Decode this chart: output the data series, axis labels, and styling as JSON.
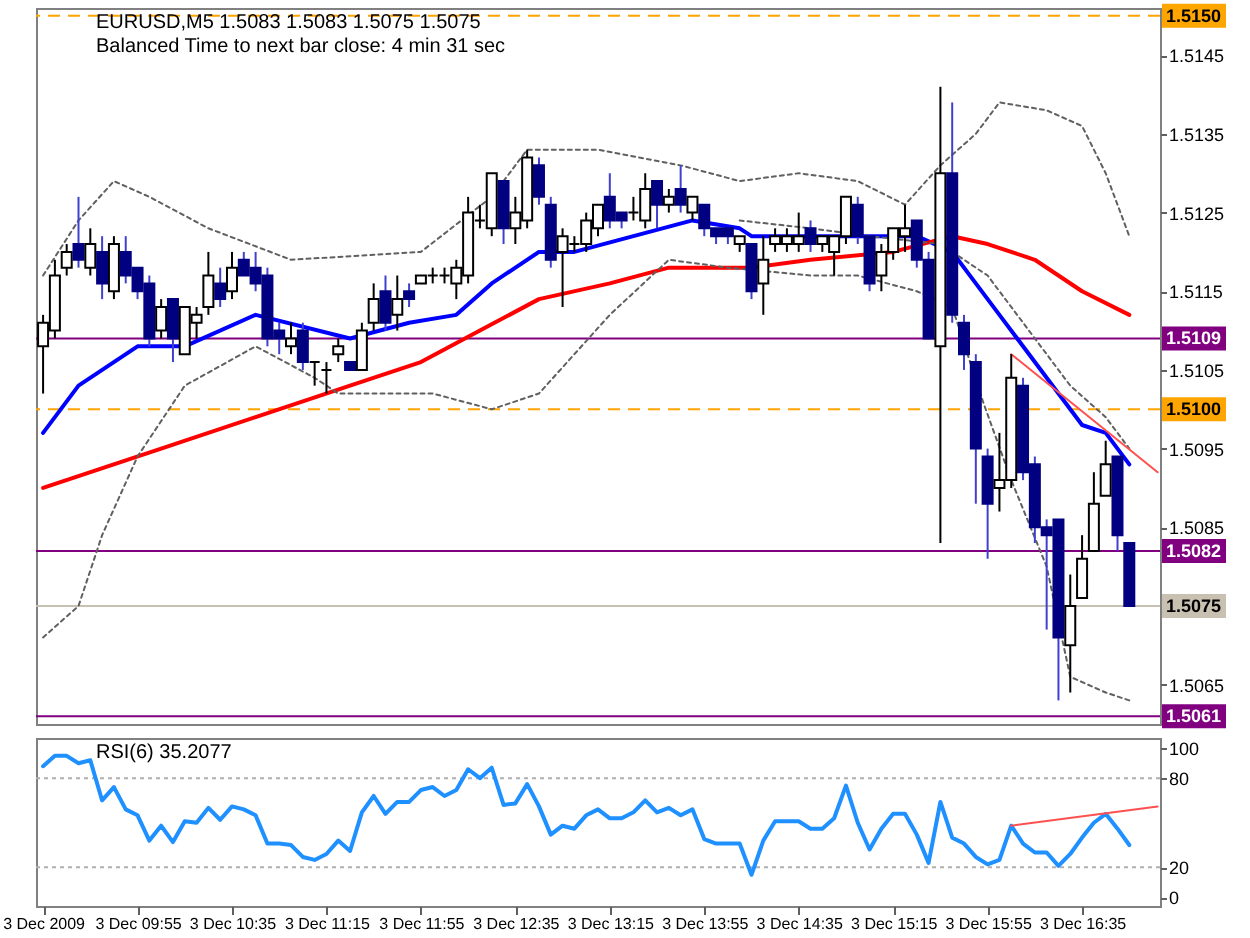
{
  "chart_data": [
    {
      "type": "candlestick",
      "title": "EURUSD,M5  1.5083 1.5083 1.5075 1.5075",
      "subtitle": "Balanced Time to next bar close: 4 min 31 sec",
      "tick_labels": "y",
      "x": [
        "2009-12-03T09:15",
        "2009-12-03T09:20",
        "2009-12-03T09:25",
        "2009-12-03T09:30",
        "2009-12-03T09:35",
        "2009-12-03T09:40",
        "2009-12-03T09:45",
        "2009-12-03T09:50",
        "2009-12-03T09:55",
        "2009-12-03T10:00",
        "2009-12-03T10:05",
        "2009-12-03T10:10",
        "2009-12-03T10:15",
        "2009-12-03T10:20",
        "2009-12-03T10:25",
        "2009-12-03T10:30",
        "2009-12-03T10:35",
        "2009-12-03T10:40",
        "2009-12-03T10:45",
        "2009-12-03T10:50",
        "2009-12-03T10:55",
        "2009-12-03T11:00",
        "2009-12-03T11:05",
        "2009-12-03T11:10",
        "2009-12-03T11:15",
        "2009-12-03T11:20",
        "2009-12-03T11:25",
        "2009-12-03T11:30",
        "2009-12-03T11:35",
        "2009-12-03T11:40",
        "2009-12-03T11:45",
        "2009-12-03T11:50",
        "2009-12-03T11:55",
        "2009-12-03T12:00",
        "2009-12-03T12:05",
        "2009-12-03T12:10",
        "2009-12-03T12:15",
        "2009-12-03T12:20",
        "2009-12-03T12:25",
        "2009-12-03T12:30",
        "2009-12-03T12:35",
        "2009-12-03T12:40",
        "2009-12-03T12:45",
        "2009-12-03T12:50",
        "2009-12-03T12:55",
        "2009-12-03T13:00",
        "2009-12-03T13:05",
        "2009-12-03T13:10",
        "2009-12-03T13:15",
        "2009-12-03T13:20",
        "2009-12-03T13:25",
        "2009-12-03T13:30",
        "2009-12-03T13:35",
        "2009-12-03T13:40",
        "2009-12-03T13:45",
        "2009-12-03T13:50",
        "2009-12-03T13:55",
        "2009-12-03T14:00",
        "2009-12-03T14:05",
        "2009-12-03T14:10",
        "2009-12-03T14:15",
        "2009-12-03T14:20",
        "2009-12-03T14:25",
        "2009-12-03T14:30",
        "2009-12-03T14:35",
        "2009-12-03T14:40",
        "2009-12-03T14:45",
        "2009-12-03T14:50",
        "2009-12-03T14:55",
        "2009-12-03T15:00",
        "2009-12-03T15:05",
        "2009-12-03T15:10",
        "2009-12-03T15:15",
        "2009-12-03T15:20",
        "2009-12-03T15:25",
        "2009-12-03T15:30",
        "2009-12-03T15:35",
        "2009-12-03T15:40",
        "2009-12-03T15:45",
        "2009-12-03T15:50",
        "2009-12-03T15:55",
        "2009-12-03T16:00",
        "2009-12-03T16:05",
        "2009-12-03T16:10",
        "2009-12-03T16:15",
        "2009-12-03T16:20",
        "2009-12-03T16:25",
        "2009-12-03T16:30",
        "2009-12-03T16:35",
        "2009-12-03T16:40",
        "2009-12-03T16:45",
        "2009-12-03T16:50",
        "2009-12-03T16:55"
      ],
      "ohlc": [
        [
          1.5108,
          1.5112,
          1.5102,
          1.5111
        ],
        [
          1.511,
          1.5119,
          1.5109,
          1.5117
        ],
        [
          1.5118,
          1.5121,
          1.5117,
          1.512
        ],
        [
          1.5121,
          1.5127,
          1.5118,
          1.5119
        ],
        [
          1.5118,
          1.5123,
          1.5117,
          1.5121
        ],
        [
          1.512,
          1.5122,
          1.5114,
          1.5116
        ],
        [
          1.5115,
          1.5122,
          1.5114,
          1.5121
        ],
        [
          1.512,
          1.5122,
          1.5116,
          1.5117
        ],
        [
          1.5118,
          1.5118,
          1.5114,
          1.5115
        ],
        [
          1.5116,
          1.5117,
          1.5108,
          1.5109
        ],
        [
          1.511,
          1.5114,
          1.5109,
          1.5113
        ],
        [
          1.5114,
          1.5114,
          1.5106,
          1.5109
        ],
        [
          1.5107,
          1.5113,
          1.5107,
          1.5113
        ],
        [
          1.5111,
          1.5113,
          1.5109,
          1.5112
        ],
        [
          1.5113,
          1.512,
          1.5112,
          1.5117
        ],
        [
          1.5116,
          1.5118,
          1.5113,
          1.5114
        ],
        [
          1.5115,
          1.512,
          1.5114,
          1.5118
        ],
        [
          1.5119,
          1.512,
          1.5117,
          1.5117
        ],
        [
          1.5118,
          1.512,
          1.5115,
          1.5116
        ],
        [
          1.5117,
          1.5118,
          1.5108,
          1.5109
        ],
        [
          1.511,
          1.5111,
          1.5107,
          1.5109
        ],
        [
          1.5108,
          1.5111,
          1.5107,
          1.5109
        ],
        [
          1.511,
          1.5111,
          1.5105,
          1.5106
        ],
        [
          1.5106,
          1.5106,
          1.5103,
          1.5106
        ],
        [
          1.5105,
          1.5106,
          1.5102,
          1.5105
        ],
        [
          1.5107,
          1.5109,
          1.5106,
          1.5108
        ],
        [
          1.5106,
          1.5106,
          1.5105,
          1.5105
        ],
        [
          1.5105,
          1.5111,
          1.5105,
          1.511
        ],
        [
          1.5111,
          1.5116,
          1.511,
          1.5114
        ],
        [
          1.5115,
          1.5117,
          1.511,
          1.5111
        ],
        [
          1.5112,
          1.5117,
          1.511,
          1.5114
        ],
        [
          1.5115,
          1.5116,
          1.5113,
          1.5114
        ],
        [
          1.5116,
          1.5117,
          1.5116,
          1.5117
        ],
        [
          1.5117,
          1.5118,
          1.5116,
          1.5117
        ],
        [
          1.5117,
          1.5118,
          1.5116,
          1.5117
        ],
        [
          1.5116,
          1.5119,
          1.5114,
          1.5118
        ],
        [
          1.5117,
          1.5127,
          1.5116,
          1.5125
        ],
        [
          1.5124,
          1.5126,
          1.5123,
          1.5124
        ],
        [
          1.5123,
          1.513,
          1.5122,
          1.513
        ],
        [
          1.5129,
          1.5129,
          1.5121,
          1.5123
        ],
        [
          1.5123,
          1.5127,
          1.5121,
          1.5125
        ],
        [
          1.5124,
          1.5133,
          1.5123,
          1.5132
        ],
        [
          1.5131,
          1.5132,
          1.5126,
          1.5127
        ],
        [
          1.5126,
          1.5127,
          1.5118,
          1.5119
        ],
        [
          1.512,
          1.5123,
          1.5113,
          1.5122
        ],
        [
          1.5121,
          1.5122,
          1.512,
          1.5121
        ],
        [
          1.5121,
          1.5125,
          1.512,
          1.5124
        ],
        [
          1.5123,
          1.5126,
          1.5122,
          1.5126
        ],
        [
          1.5127,
          1.513,
          1.5123,
          1.5124
        ],
        [
          1.5125,
          1.5125,
          1.5123,
          1.5124
        ],
        [
          1.5125,
          1.5127,
          1.5124,
          1.5125
        ],
        [
          1.5124,
          1.513,
          1.5123,
          1.5128
        ],
        [
          1.5129,
          1.5129,
          1.5123,
          1.5126
        ],
        [
          1.5126,
          1.5128,
          1.5125,
          1.5127
        ],
        [
          1.5128,
          1.5131,
          1.5125,
          1.5126
        ],
        [
          1.5125,
          1.5127,
          1.5124,
          1.5127
        ],
        [
          1.5126,
          1.5126,
          1.5122,
          1.5123
        ],
        [
          1.5123,
          1.5123,
          1.5121,
          1.5122
        ],
        [
          1.5123,
          1.5123,
          1.5121,
          1.5122
        ],
        [
          1.5121,
          1.5122,
          1.512,
          1.5122
        ],
        [
          1.5121,
          1.5121,
          1.5114,
          1.5115
        ],
        [
          1.5116,
          1.5122,
          1.5112,
          1.5119
        ],
        [
          1.5121,
          1.5123,
          1.512,
          1.5122
        ],
        [
          1.5121,
          1.5123,
          1.512,
          1.5122
        ],
        [
          1.5121,
          1.5125,
          1.512,
          1.5122
        ],
        [
          1.5123,
          1.5124,
          1.512,
          1.5121
        ],
        [
          1.5121,
          1.5122,
          1.512,
          1.5122
        ],
        [
          1.512,
          1.5122,
          1.5117,
          1.5122
        ],
        [
          1.5122,
          1.5127,
          1.5121,
          1.5127
        ],
        [
          1.5126,
          1.5127,
          1.5121,
          1.5122
        ],
        [
          1.5122,
          1.5122,
          1.5115,
          1.5116
        ],
        [
          1.5117,
          1.5121,
          1.5115,
          1.512
        ],
        [
          1.512,
          1.5123,
          1.5119,
          1.5123
        ],
        [
          1.5122,
          1.5126,
          1.512,
          1.5123
        ],
        [
          1.5124,
          1.5124,
          1.5118,
          1.5119
        ],
        [
          1.5119,
          1.512,
          1.5109,
          1.5109
        ],
        [
          1.5108,
          1.5141,
          1.5083,
          1.513
        ],
        [
          1.513,
          1.5139,
          1.5111,
          1.5112
        ],
        [
          1.5111,
          1.5112,
          1.5105,
          1.5107
        ],
        [
          1.5106,
          1.5107,
          1.5088,
          1.5095
        ],
        [
          1.5094,
          1.5095,
          1.5081,
          1.5088
        ],
        [
          1.509,
          1.5097,
          1.5087,
          1.5091
        ],
        [
          1.5091,
          1.5107,
          1.509,
          1.5104
        ],
        [
          1.5103,
          1.5104,
          1.5091,
          1.5092
        ],
        [
          1.5093,
          1.5094,
          1.5083,
          1.5085
        ],
        [
          1.5085,
          1.5086,
          1.5072,
          1.5084
        ],
        [
          1.5086,
          1.5086,
          1.5063,
          1.5071
        ],
        [
          1.507,
          1.5079,
          1.5064,
          1.5075
        ],
        [
          1.5076,
          1.5084,
          1.5076,
          1.5081
        ],
        [
          1.5082,
          1.5092,
          1.5082,
          1.5088
        ],
        [
          1.5089,
          1.5096,
          1.5089,
          1.5093
        ],
        [
          1.5094,
          1.5094,
          1.5082,
          1.5084
        ],
        [
          1.5083,
          1.5083,
          1.5075,
          1.5075
        ]
      ],
      "series": [
        {
          "type": "line",
          "color": "#0000ff",
          "x": [
            "2009-12-03T09:15",
            "2009-12-03T09:30",
            "2009-12-03T09:55",
            "2009-12-03T10:15",
            "2009-12-03T10:45",
            "2009-12-03T11:25",
            "2009-12-03T11:50",
            "2009-12-03T12:10",
            "2009-12-03T12:25",
            "2009-12-03T12:45",
            "2009-12-03T13:00",
            "2009-12-03T13:50",
            "2009-12-03T14:10",
            "2009-12-03T14:15",
            "2009-12-03T14:35",
            "2009-12-03T15:00",
            "2009-12-03T15:25",
            "2009-12-03T15:40",
            "2009-12-03T16:00",
            "2009-12-03T16:15",
            "2009-12-03T16:25",
            "2009-12-03T16:35",
            "2009-12-03T16:45",
            "2009-12-03T16:55"
          ],
          "values": [
            1.5097,
            1.5103,
            1.5108,
            1.5108,
            1.5112,
            1.5109,
            1.5111,
            1.5112,
            1.5116,
            1.512,
            1.512,
            1.5124,
            1.5123,
            1.5122,
            1.5122,
            1.5122,
            1.5122,
            1.512,
            1.5112,
            1.5106,
            1.5102,
            1.5098,
            1.5097,
            1.5093
          ]
        },
        {
          "type": "line",
          "color": "#ff0000",
          "x": [
            "2009-12-03T09:15",
            "2009-12-03T10:05",
            "2009-12-03T10:45",
            "2009-12-03T11:25",
            "2009-12-03T11:55",
            "2009-12-03T12:20",
            "2009-12-03T12:45",
            "2009-12-03T13:15",
            "2009-12-03T13:40",
            "2009-12-03T14:15",
            "2009-12-03T14:40",
            "2009-12-03T15:15",
            "2009-12-03T15:40",
            "2009-12-03T15:55",
            "2009-12-03T16:15",
            "2009-12-03T16:35",
            "2009-12-03T16:55"
          ],
          "values": [
            1.509,
            1.5095,
            1.5099,
            1.5103,
            1.5106,
            1.511,
            1.5114,
            1.5116,
            1.5118,
            1.5118,
            1.5119,
            1.512,
            1.5122,
            1.5121,
            1.5119,
            1.5115,
            1.5112
          ]
        },
        {
          "type": "line",
          "color": "#606060",
          "line_style": "dotted",
          "x": [
            "2009-12-03T09:15",
            "2009-12-03T09:30",
            "2009-12-03T09:45",
            "2009-12-03T10:00",
            "2009-12-03T10:25",
            "2009-12-03T11:00",
            "2009-12-03T11:55",
            "2009-12-03T12:25",
            "2009-12-03T12:40",
            "2009-12-03T13:10",
            "2009-12-03T13:45",
            "2009-12-03T14:10",
            "2009-12-03T14:35",
            "2009-12-03T15:00",
            "2009-12-03T15:20",
            "2009-12-03T15:35",
            "2009-12-03T15:50",
            "2009-12-03T16:00",
            "2009-12-03T16:20",
            "2009-12-03T16:35",
            "2009-12-03T16:45",
            "2009-12-03T16:55"
          ],
          "values": [
            1.5117,
            1.5124,
            1.5129,
            1.5127,
            1.5123,
            1.5119,
            1.512,
            1.5127,
            1.5133,
            1.5133,
            1.5131,
            1.5129,
            1.513,
            1.5129,
            1.5126,
            1.5131,
            1.5135,
            1.5139,
            1.5138,
            1.5136,
            1.513,
            1.5122
          ]
        },
        {
          "type": "line",
          "color": "#606060",
          "line_style": "dotted",
          "x": [
            "2009-12-03T09:15",
            "2009-12-03T09:30",
            "2009-12-03T09:40",
            "2009-12-03T09:55",
            "2009-12-03T10:15",
            "2009-12-03T10:45",
            "2009-12-03T11:10",
            "2009-12-03T11:20",
            "2009-12-03T12:00",
            "2009-12-03T12:25",
            "2009-12-03T12:45",
            "2009-12-03T13:15",
            "2009-12-03T13:40",
            "2009-12-03T14:05",
            "2009-12-03T14:40",
            "2009-12-03T15:00",
            "2009-12-03T15:25",
            "2009-12-03T15:40",
            "2009-12-03T15:53",
            "2009-12-03T16:05",
            "2009-12-03T16:20",
            "2009-12-03T16:30",
            "2009-12-03T16:45",
            "2009-12-03T16:55"
          ],
          "values": [
            1.5071,
            1.5075,
            1.5084,
            1.5094,
            1.5103,
            1.5108,
            1.5104,
            1.5102,
            1.5102,
            1.51,
            1.5102,
            1.5112,
            1.5119,
            1.5118,
            1.5117,
            1.5117,
            1.5115,
            1.5113,
            1.5101,
            1.5091,
            1.508,
            1.5066,
            1.5064,
            1.5063
          ]
        },
        {
          "type": "line",
          "color": "#606060",
          "line_style": "dotted",
          "x": [
            "2009-12-03T14:10",
            "2009-12-03T14:40",
            "2009-12-03T15:05",
            "2009-12-03T15:35",
            "2009-12-03T15:55",
            "2009-12-03T16:15",
            "2009-12-03T16:30",
            "2009-12-03T16:45",
            "2009-12-03T16:55"
          ],
          "values": [
            1.5124,
            1.5123,
            1.5122,
            1.5121,
            1.5117,
            1.5109,
            1.5103,
            1.5099,
            1.5095
          ]
        },
        {
          "type": "line",
          "color": "#ff5050",
          "x": [
            "2009-12-03T16:05",
            "2009-12-03T17:07"
          ],
          "values": [
            1.5107,
            1.5092
          ]
        }
      ],
      "xlim": [
        "2009-12-03T09:12",
        "2009-12-03T17:08"
      ],
      "ylim": [
        1.506,
        1.5151
      ],
      "yticks": [
        1.5065,
        1.5085,
        1.5095,
        1.5105,
        1.5115,
        1.5125,
        1.5135,
        1.5145
      ],
      "ref_lines": [
        {
          "axis": "y",
          "value": 1.515,
          "label": "1.5150",
          "color": "#ffa500",
          "line_style": "dashed"
        },
        {
          "axis": "y",
          "value": 1.5109,
          "label": "1.5109",
          "color": "#800080"
        },
        {
          "axis": "y",
          "value": 1.51,
          "label": "1.5100",
          "color": "#ffa500",
          "line_style": "dashed"
        },
        {
          "axis": "y",
          "value": 1.5082,
          "label": "1.5082",
          "color": "#800080"
        },
        {
          "axis": "y",
          "value": 1.5075,
          "label": "1.5075",
          "color": "#c8c0b0"
        },
        {
          "axis": "y",
          "value": 1.5061,
          "label": "1.5061",
          "color": "#800080"
        }
      ]
    },
    {
      "type": "line",
      "title": "RSI(6) 35.2077",
      "x": [
        "2009-12-03T09:15",
        "2009-12-03T09:20",
        "2009-12-03T09:25",
        "2009-12-03T09:30",
        "2009-12-03T09:35",
        "2009-12-03T09:40",
        "2009-12-03T09:45",
        "2009-12-03T09:50",
        "2009-12-03T09:55",
        "2009-12-03T10:00",
        "2009-12-03T10:05",
        "2009-12-03T10:10",
        "2009-12-03T10:15",
        "2009-12-03T10:20",
        "2009-12-03T10:25",
        "2009-12-03T10:30",
        "2009-12-03T10:35",
        "2009-12-03T10:40",
        "2009-12-03T10:45",
        "2009-12-03T10:50",
        "2009-12-03T10:55",
        "2009-12-03T11:00",
        "2009-12-03T11:05",
        "2009-12-03T11:10",
        "2009-12-03T11:15",
        "2009-12-03T11:20",
        "2009-12-03T11:25",
        "2009-12-03T11:30",
        "2009-12-03T11:35",
        "2009-12-03T11:40",
        "2009-12-03T11:45",
        "2009-12-03T11:50",
        "2009-12-03T11:55",
        "2009-12-03T12:00",
        "2009-12-03T12:05",
        "2009-12-03T12:10",
        "2009-12-03T12:15",
        "2009-12-03T12:20",
        "2009-12-03T12:25",
        "2009-12-03T12:30",
        "2009-12-03T12:35",
        "2009-12-03T12:40",
        "2009-12-03T12:45",
        "2009-12-03T12:50",
        "2009-12-03T12:55",
        "2009-12-03T13:00",
        "2009-12-03T13:05",
        "2009-12-03T13:10",
        "2009-12-03T13:15",
        "2009-12-03T13:20",
        "2009-12-03T13:25",
        "2009-12-03T13:30",
        "2009-12-03T13:35",
        "2009-12-03T13:40",
        "2009-12-03T13:45",
        "2009-12-03T13:50",
        "2009-12-03T13:55",
        "2009-12-03T14:00",
        "2009-12-03T14:05",
        "2009-12-03T14:10",
        "2009-12-03T14:15",
        "2009-12-03T14:20",
        "2009-12-03T14:25",
        "2009-12-03T14:30",
        "2009-12-03T14:35",
        "2009-12-03T14:40",
        "2009-12-03T14:45",
        "2009-12-03T14:50",
        "2009-12-03T14:55",
        "2009-12-03T15:00",
        "2009-12-03T15:05",
        "2009-12-03T15:10",
        "2009-12-03T15:15",
        "2009-12-03T15:20",
        "2009-12-03T15:25",
        "2009-12-03T15:30",
        "2009-12-03T15:35",
        "2009-12-03T15:40",
        "2009-12-03T15:45",
        "2009-12-03T15:50",
        "2009-12-03T15:55",
        "2009-12-03T16:00",
        "2009-12-03T16:05",
        "2009-12-03T16:10",
        "2009-12-03T16:15",
        "2009-12-03T16:20",
        "2009-12-03T16:25",
        "2009-12-03T16:30",
        "2009-12-03T16:35",
        "2009-12-03T16:40",
        "2009-12-03T16:45",
        "2009-12-03T16:50",
        "2009-12-03T16:55"
      ],
      "series": [
        {
          "color": "#1e90ff",
          "values": [
            88,
            95,
            95,
            90,
            92,
            65,
            74,
            59,
            55,
            38,
            48,
            37,
            51,
            50,
            60,
            52,
            61,
            59,
            55,
            36,
            36,
            35,
            27,
            25,
            29,
            38,
            31,
            57,
            68,
            56,
            64,
            64,
            72,
            74,
            68,
            72,
            86,
            80,
            87,
            62,
            63,
            76,
            61,
            42,
            48,
            46,
            55,
            59,
            53,
            53,
            57,
            65,
            57,
            60,
            55,
            59,
            39,
            36,
            36,
            36,
            15,
            38,
            51,
            51,
            51,
            46,
            46,
            53,
            75,
            50,
            32,
            46,
            56,
            56,
            42,
            23,
            64,
            40,
            36,
            27,
            22,
            25,
            48,
            36,
            30,
            30,
            21,
            29,
            40,
            50,
            56,
            46,
            35
          ]
        },
        {
          "type": "line",
          "color": "#ff5050",
          "x": [
            "2009-12-03T16:05",
            "2009-12-03T17:07"
          ],
          "values": [
            48,
            61
          ]
        }
      ],
      "xlim": [
        "2009-12-03T09:12",
        "2009-12-03T17:08"
      ],
      "ylim": [
        -6,
        107
      ],
      "xticks": [
        {
          "value": "2009-12-03T09:15",
          "label": "3 Dec 2009"
        },
        {
          "value": "2009-12-03T09:55",
          "label": "3 Dec 09:55"
        },
        {
          "value": "2009-12-03T10:35",
          "label": "3 Dec 10:35"
        },
        {
          "value": "2009-12-03T11:15",
          "label": "3 Dec 11:15"
        },
        {
          "value": "2009-12-03T11:55",
          "label": "3 Dec 11:55"
        },
        {
          "value": "2009-12-03T12:35",
          "label": "3 Dec 12:35"
        },
        {
          "value": "2009-12-03T13:15",
          "label": "3 Dec 13:15"
        },
        {
          "value": "2009-12-03T13:55",
          "label": "3 Dec 13:55"
        },
        {
          "value": "2009-12-03T14:35",
          "label": "3 Dec 14:35"
        },
        {
          "value": "2009-12-03T15:15",
          "label": "3 Dec 15:15"
        },
        {
          "value": "2009-12-03T15:55",
          "label": "3 Dec 15:55"
        },
        {
          "value": "2009-12-03T16:35",
          "label": "3 Dec 16:35"
        }
      ],
      "yticks": [
        0,
        20,
        80,
        100
      ],
      "ref_lines": [
        {
          "axis": "y",
          "value": 80,
          "color": "#b0b0b0",
          "line_style": "dotted"
        },
        {
          "axis": "y",
          "value": 20,
          "color": "#b0b0b0",
          "line_style": "dotted"
        }
      ]
    }
  ]
}
